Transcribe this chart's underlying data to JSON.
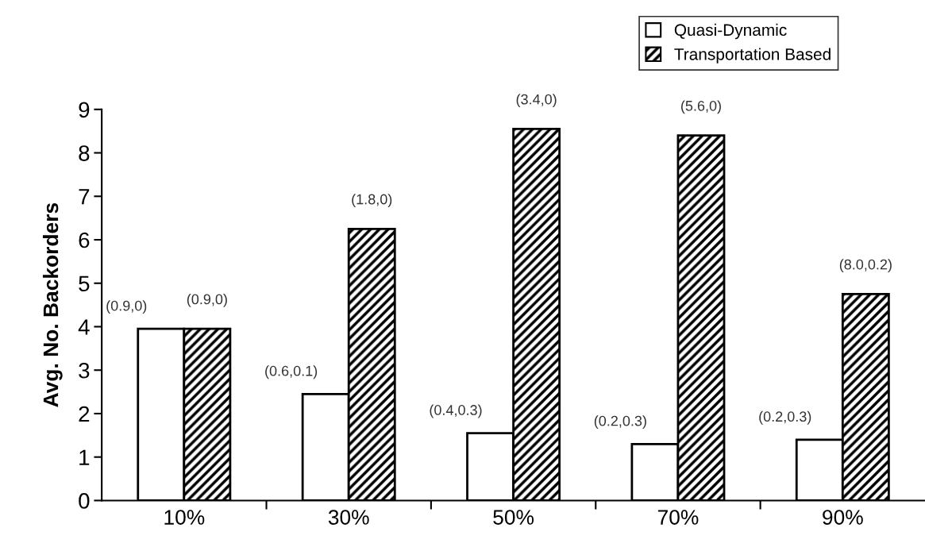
{
  "chart_data": {
    "type": "bar",
    "ylabel": "Avg. No. Backorders",
    "categories": [
      "10%",
      "30%",
      "50%",
      "70%",
      "90%"
    ],
    "series": [
      {
        "name": "Quasi-Dynamic",
        "color": "#ffffff",
        "values": [
          3.95,
          2.45,
          1.55,
          1.3,
          1.4
        ],
        "value_labels": [
          "(0.9,0)",
          "(0.6,0.1)",
          "(0.4,0.3)",
          "(0.2,0.3)",
          "(0.2,0.3)"
        ]
      },
      {
        "name": "Transportation Based",
        "color": "#000000",
        "values": [
          3.95,
          6.25,
          8.55,
          8.4,
          4.75
        ],
        "value_labels": [
          "(0.9,0)",
          "(1.8,0)",
          "(3.4,0)",
          "(5.6,0)",
          "(8.0,0.2)"
        ]
      }
    ],
    "ylim": [
      0,
      9
    ],
    "yticks": [
      0,
      1,
      2,
      3,
      4,
      5,
      6,
      7,
      8,
      9
    ],
    "grid": false,
    "legend": "top right"
  }
}
